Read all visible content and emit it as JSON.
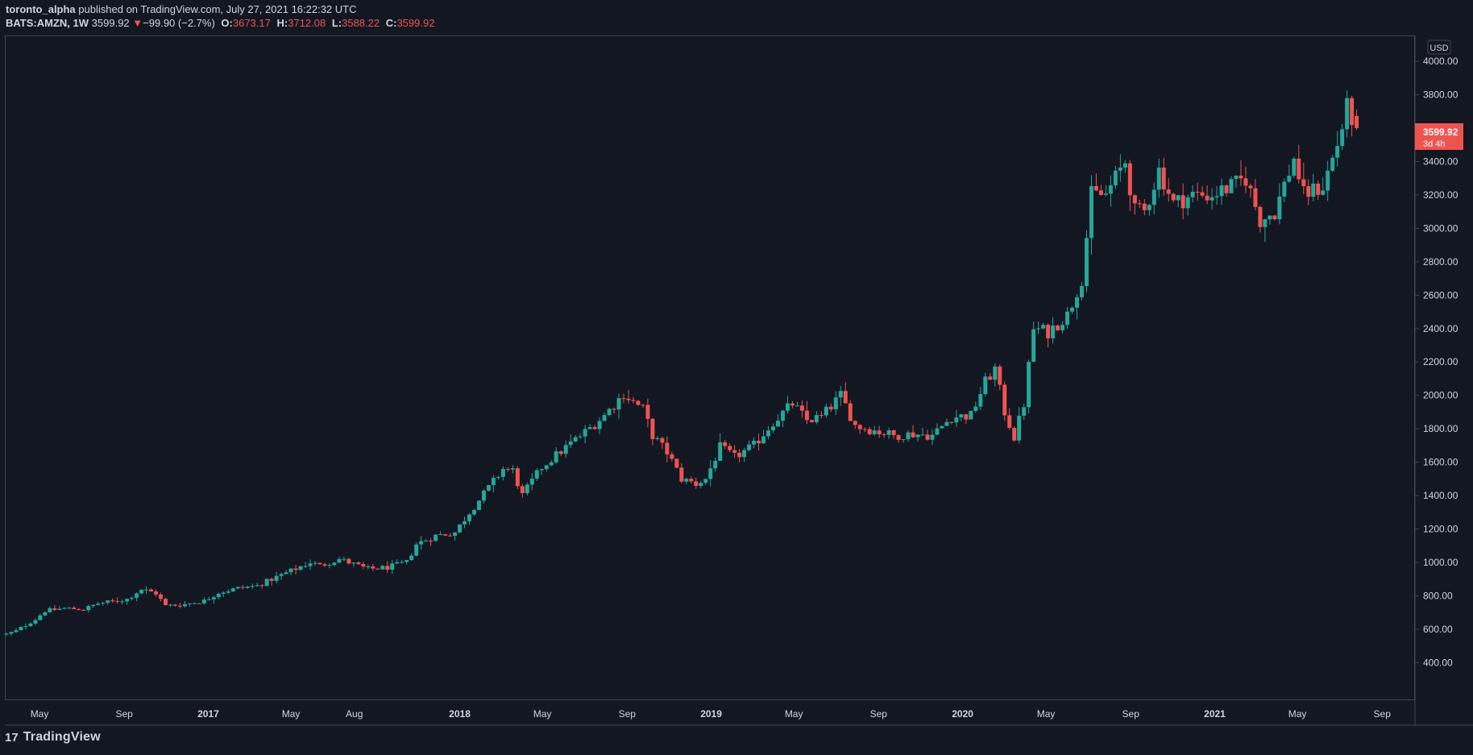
{
  "header": {
    "author": "toronto_alpha",
    "published_text": "published on TradingView.com, July 27, 2021 16:22:32 UTC",
    "symbol": "BATS:AMZN, 1W",
    "price": "3599.92",
    "change_arrow": "▼",
    "change": "−99.90 (−2.7%)",
    "o_label": "O:",
    "o_value": "3673.17",
    "h_label": "H:",
    "h_value": "3712.08",
    "l_label": "L:",
    "l_value": "3588.22",
    "c_label": "C:",
    "c_value": "3599.92"
  },
  "footer": {
    "logo": "17",
    "brand": "TradingView"
  },
  "colors": {
    "background": "#131722",
    "up": "#26a69a",
    "down": "#ef5350",
    "text": "#d1d4dc",
    "grid_border": "#434651"
  },
  "chart_data": {
    "type": "candlestick",
    "currency": "USD",
    "y_ticks": [
      "4000.00",
      "3800.00",
      "3600.00",
      "3400.00",
      "3200.00",
      "3000.00",
      "2800.00",
      "2600.00",
      "2400.00",
      "2200.00",
      "2000.00",
      "1800.00",
      "1600.00",
      "1400.00",
      "1200.00",
      "1000.00",
      "800.00",
      "600.00",
      "400.00"
    ],
    "ylim": [
      180,
      4150
    ],
    "x_ticks": [
      {
        "label": "May",
        "date": "2016-05-01",
        "bold": false
      },
      {
        "label": "Sep",
        "date": "2016-09-01",
        "bold": false
      },
      {
        "label": "2017",
        "date": "2017-01-01",
        "bold": true
      },
      {
        "label": "May",
        "date": "2017-05-01",
        "bold": false
      },
      {
        "label": "Aug",
        "date": "2017-08-01",
        "bold": false
      },
      {
        "label": "2018",
        "date": "2018-01-01",
        "bold": true
      },
      {
        "label": "May",
        "date": "2018-05-01",
        "bold": false
      },
      {
        "label": "Sep",
        "date": "2018-09-01",
        "bold": false
      },
      {
        "label": "2019",
        "date": "2019-01-01",
        "bold": true
      },
      {
        "label": "May",
        "date": "2019-05-01",
        "bold": false
      },
      {
        "label": "Sep",
        "date": "2019-09-01",
        "bold": false
      },
      {
        "label": "2020",
        "date": "2020-01-01",
        "bold": true
      },
      {
        "label": "May",
        "date": "2020-05-01",
        "bold": false
      },
      {
        "label": "Sep",
        "date": "2020-09-01",
        "bold": false
      },
      {
        "label": "2021",
        "date": "2021-01-01",
        "bold": true
      },
      {
        "label": "May",
        "date": "2021-05-01",
        "bold": false
      },
      {
        "label": "Sep",
        "date": "2021-09-01",
        "bold": false
      }
    ],
    "xlim": [
      "2016-03-14",
      "2021-10-14"
    ],
    "last_price_label": "3599.92",
    "last_price_countdown": "3d 4h",
    "last_price": 3599.92,
    "series": [
      {
        "date": "2016-03-14",
        "close": 570
      },
      {
        "date": "2016-03-28",
        "close": 590
      },
      {
        "date": "2016-04-25",
        "close": 660
      },
      {
        "date": "2016-05-09",
        "close": 710
      },
      {
        "date": "2016-06-06",
        "close": 725
      },
      {
        "date": "2016-07-04",
        "close": 720
      },
      {
        "date": "2016-07-25",
        "close": 755
      },
      {
        "date": "2016-08-15",
        "close": 765
      },
      {
        "date": "2016-09-05",
        "close": 780
      },
      {
        "date": "2016-09-26",
        "close": 840
      },
      {
        "date": "2016-10-17",
        "close": 815
      },
      {
        "date": "2016-10-31",
        "close": 740
      },
      {
        "date": "2016-11-28",
        "close": 750
      },
      {
        "date": "2016-12-26",
        "close": 770
      },
      {
        "date": "2017-01-16",
        "close": 820
      },
      {
        "date": "2017-02-13",
        "close": 845
      },
      {
        "date": "2017-03-13",
        "close": 860
      },
      {
        "date": "2017-04-03",
        "close": 900
      },
      {
        "date": "2017-05-01",
        "close": 950
      },
      {
        "date": "2017-05-29",
        "close": 1000
      },
      {
        "date": "2017-06-12",
        "close": 980
      },
      {
        "date": "2017-07-10",
        "close": 1020
      },
      {
        "date": "2017-07-31",
        "close": 990
      },
      {
        "date": "2017-08-21",
        "close": 960
      },
      {
        "date": "2017-09-18",
        "close": 970
      },
      {
        "date": "2017-10-16",
        "close": 1000
      },
      {
        "date": "2017-10-30",
        "close": 1110
      },
      {
        "date": "2017-11-27",
        "close": 1160
      },
      {
        "date": "2017-12-25",
        "close": 1180
      },
      {
        "date": "2018-01-15",
        "close": 1300
      },
      {
        "date": "2018-02-05",
        "close": 1410
      },
      {
        "date": "2018-03-05",
        "close": 1560
      },
      {
        "date": "2018-03-19",
        "close": 1550
      },
      {
        "date": "2018-04-02",
        "close": 1400
      },
      {
        "date": "2018-04-30",
        "close": 1570
      },
      {
        "date": "2018-06-04",
        "close": 1690
      },
      {
        "date": "2018-07-02",
        "close": 1780
      },
      {
        "date": "2018-07-30",
        "close": 1880
      },
      {
        "date": "2018-08-27",
        "close": 2010
      },
      {
        "date": "2018-09-10",
        "close": 1960
      },
      {
        "date": "2018-09-24",
        "close": 1920
      },
      {
        "date": "2018-10-08",
        "close": 1760
      },
      {
        "date": "2018-10-29",
        "close": 1660
      },
      {
        "date": "2018-11-19",
        "close": 1500
      },
      {
        "date": "2018-12-10",
        "close": 1470
      },
      {
        "date": "2018-12-24",
        "close": 1500
      },
      {
        "date": "2019-01-14",
        "close": 1690
      },
      {
        "date": "2019-02-04",
        "close": 1630
      },
      {
        "date": "2019-03-04",
        "close": 1700
      },
      {
        "date": "2019-04-01",
        "close": 1840
      },
      {
        "date": "2019-04-29",
        "close": 1950
      },
      {
        "date": "2019-05-20",
        "close": 1850
      },
      {
        "date": "2019-06-10",
        "close": 1870
      },
      {
        "date": "2019-07-08",
        "close": 2000
      },
      {
        "date": "2019-07-29",
        "close": 1820
      },
      {
        "date": "2019-08-26",
        "close": 1790
      },
      {
        "date": "2019-09-23",
        "close": 1760
      },
      {
        "date": "2019-10-21",
        "close": 1770
      },
      {
        "date": "2019-11-18",
        "close": 1760
      },
      {
        "date": "2019-12-16",
        "close": 1870
      },
      {
        "date": "2020-01-13",
        "close": 1880
      },
      {
        "date": "2020-02-03",
        "close": 2080
      },
      {
        "date": "2020-02-17",
        "close": 2160
      },
      {
        "date": "2020-03-02",
        "close": 1900
      },
      {
        "date": "2020-03-16",
        "close": 1750
      },
      {
        "date": "2020-03-30",
        "close": 1950
      },
      {
        "date": "2020-04-13",
        "close": 2400
      },
      {
        "date": "2020-05-04",
        "close": 2380
      },
      {
        "date": "2020-06-01",
        "close": 2480
      },
      {
        "date": "2020-06-22",
        "close": 2700
      },
      {
        "date": "2020-07-06",
        "close": 3200
      },
      {
        "date": "2020-07-27",
        "close": 3200
      },
      {
        "date": "2020-08-24",
        "close": 3400
      },
      {
        "date": "2020-09-07",
        "close": 3100
      },
      {
        "date": "2020-09-21",
        "close": 3100
      },
      {
        "date": "2020-10-12",
        "close": 3350
      },
      {
        "date": "2020-11-02",
        "close": 3150
      },
      {
        "date": "2020-11-30",
        "close": 3200
      },
      {
        "date": "2020-12-28",
        "close": 3200
      },
      {
        "date": "2021-01-25",
        "close": 3250
      },
      {
        "date": "2021-02-15",
        "close": 3300
      },
      {
        "date": "2021-03-08",
        "close": 3050
      },
      {
        "date": "2021-03-29",
        "close": 3100
      },
      {
        "date": "2021-04-26",
        "close": 3420
      },
      {
        "date": "2021-05-10",
        "close": 3200
      },
      {
        "date": "2021-06-07",
        "close": 3250
      },
      {
        "date": "2021-06-28",
        "close": 3500
      },
      {
        "date": "2021-07-12",
        "close": 3720
      },
      {
        "date": "2021-07-26",
        "close": 3599.92
      }
    ]
  }
}
